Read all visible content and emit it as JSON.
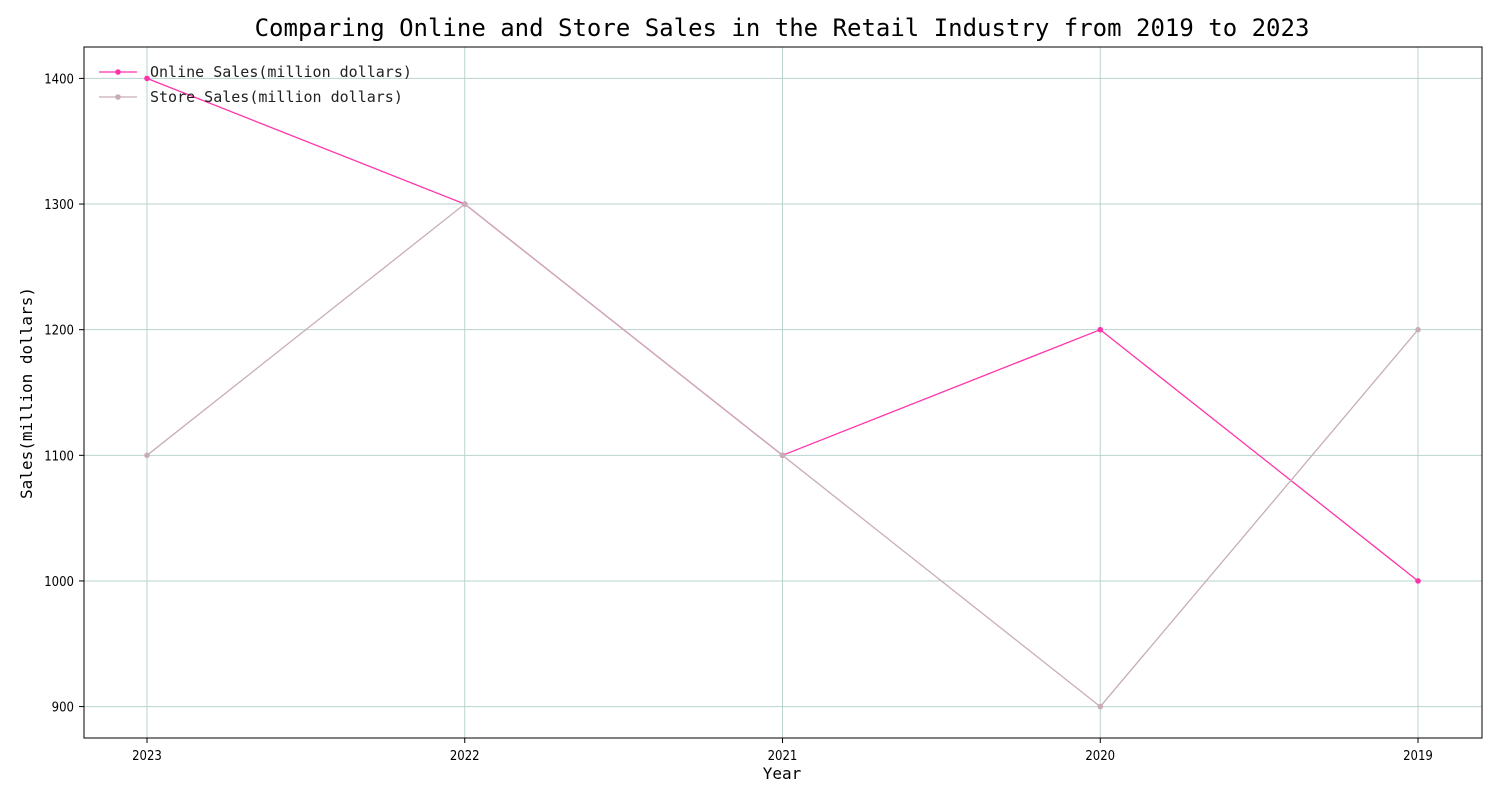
{
  "chart_data": {
    "type": "line",
    "title": "Comparing Online and Store Sales in the Retail Industry from 2019 to 2023",
    "xlabel": "Year",
    "ylabel": "Sales(million dollars)",
    "categories": [
      "2023",
      "2022",
      "2021",
      "2020",
      "2019"
    ],
    "yticks": [
      900,
      1000,
      1100,
      1200,
      1300,
      1400
    ],
    "ylim": [
      875,
      1425
    ],
    "grid": true,
    "legend_position": "top-left",
    "series": [
      {
        "name": "Online Sales(million dollars)",
        "values": [
          1400,
          1300,
          1100,
          1200,
          1000
        ],
        "color": "#ff33aa"
      },
      {
        "name": "Store Sales(million dollars)",
        "values": [
          1100,
          1300,
          1100,
          900,
          1200
        ],
        "color": "#c8adb8"
      }
    ],
    "grid_color": "#b9d3cf"
  }
}
